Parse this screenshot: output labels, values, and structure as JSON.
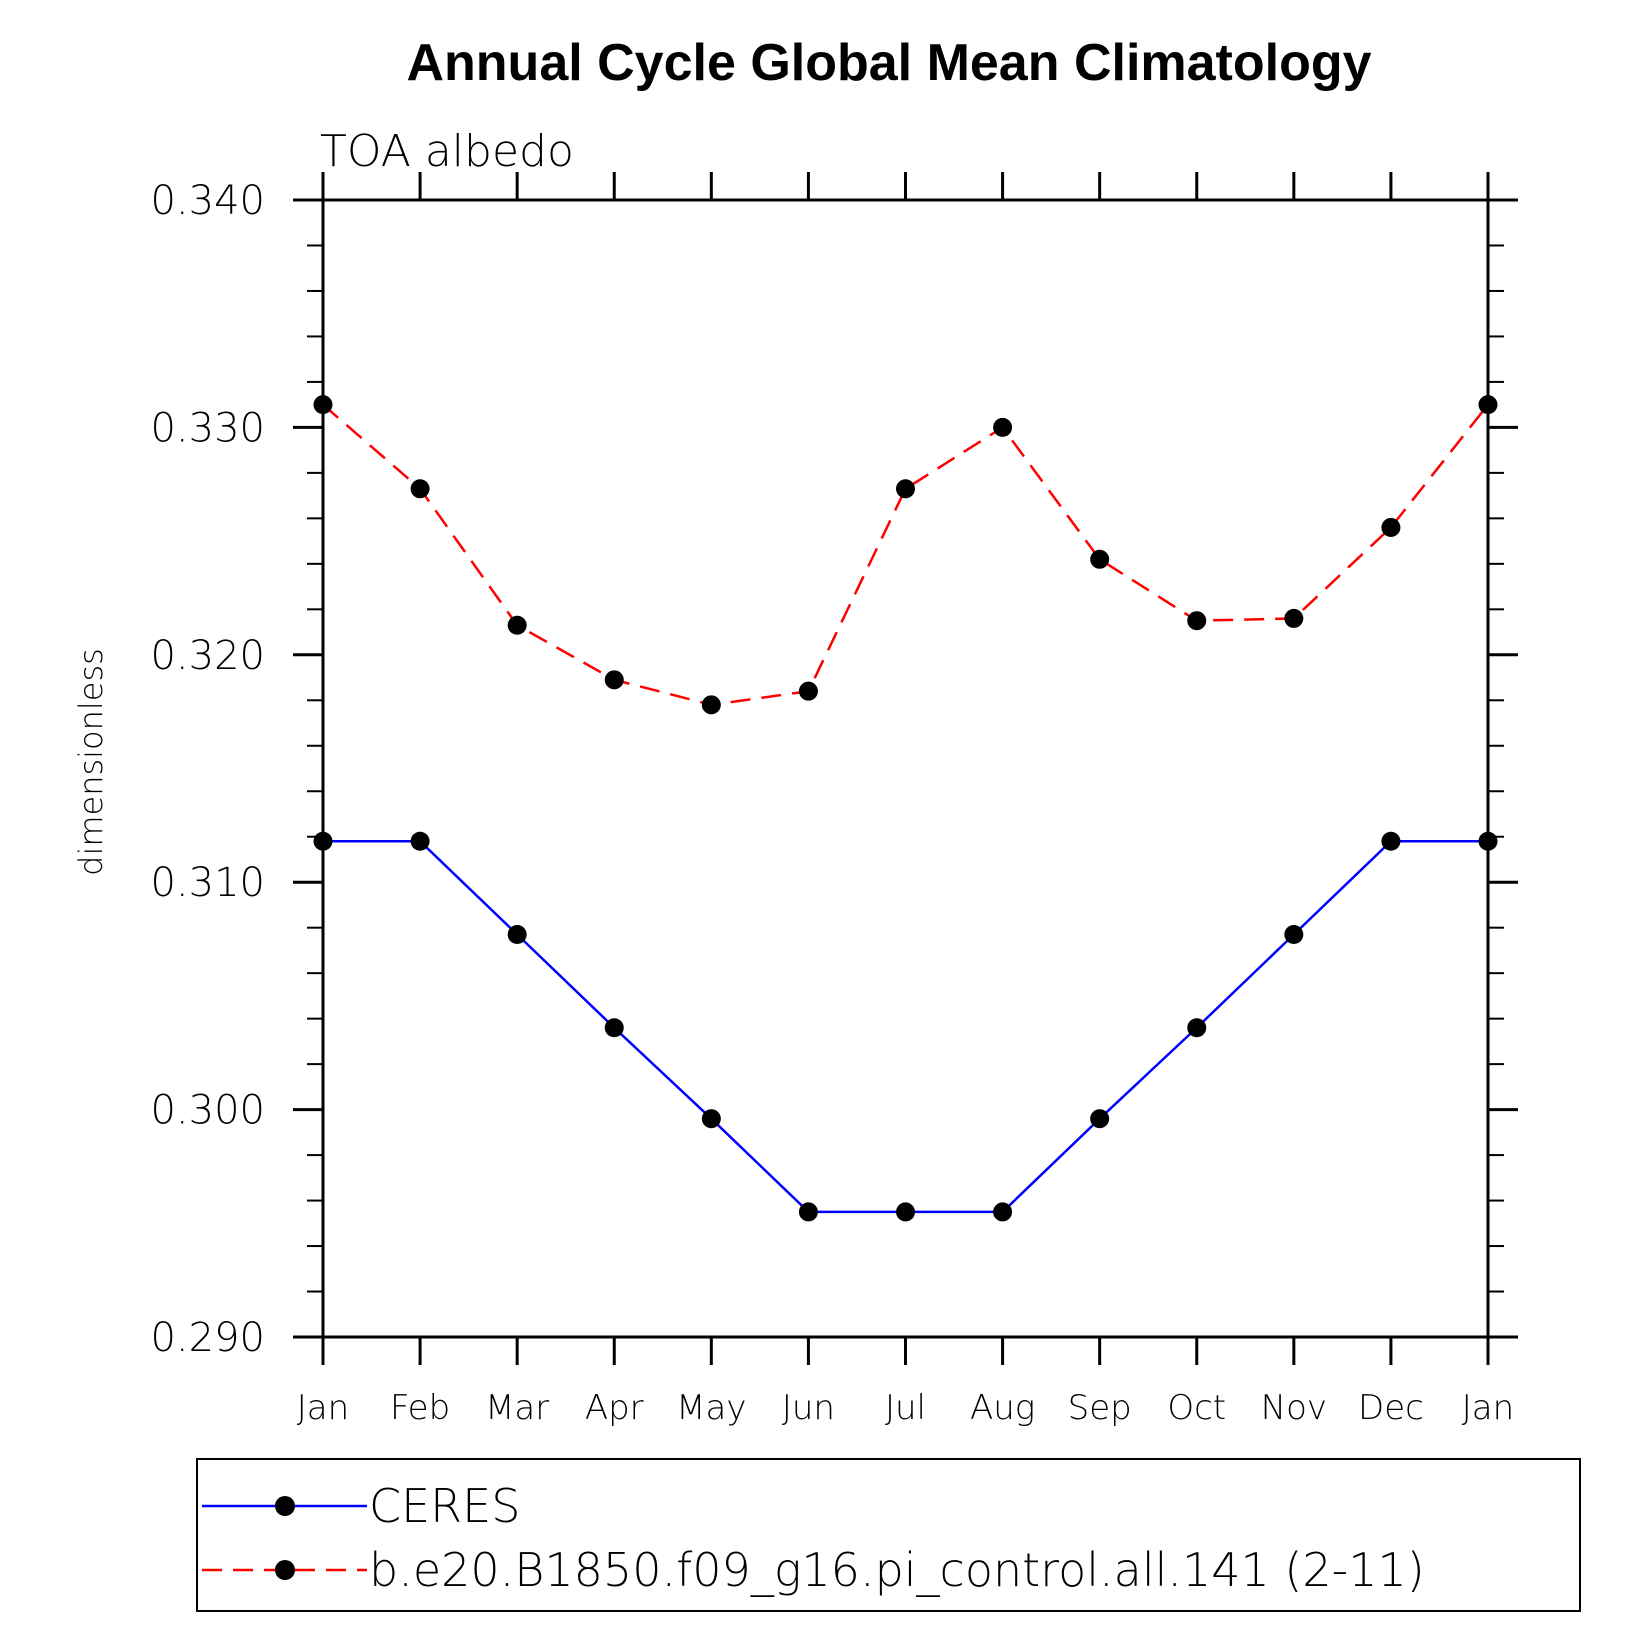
{
  "chart_data": {
    "type": "line",
    "title": "Annual Cycle Global Mean Climatology",
    "subtitle": "TOA  albedo",
    "ylabel": "dimensionless",
    "xlabel": "",
    "categories": [
      "Jan",
      "Feb",
      "Mar",
      "Apr",
      "May",
      "Jun",
      "Jul",
      "Aug",
      "Sep",
      "Oct",
      "Nov",
      "Dec",
      "Jan"
    ],
    "ylim": [
      0.29,
      0.34
    ],
    "yticks": [
      "0.290",
      "0.300",
      "0.310",
      "0.320",
      "0.330",
      "0.340"
    ],
    "series": [
      {
        "name": "CERES",
        "color": "#0000ff",
        "style": "solid",
        "marker": "filled-circle",
        "values": [
          0.3118,
          0.3118,
          0.3077,
          0.3036,
          0.2996,
          0.2955,
          0.2955,
          0.2955,
          0.2996,
          0.3036,
          0.3077,
          0.3118,
          0.3118
        ]
      },
      {
        "name": "b.e20.B1850.f09_g16.pi_control.all.141 (2-11)",
        "color": "#ff0000",
        "style": "dashed",
        "marker": "filled-circle",
        "values": [
          0.331,
          0.3273,
          0.3213,
          0.3189,
          0.3178,
          0.3184,
          0.3273,
          0.33,
          0.3242,
          0.3215,
          0.3216,
          0.3256,
          0.331
        ]
      }
    ],
    "legend_position": "bottom"
  }
}
